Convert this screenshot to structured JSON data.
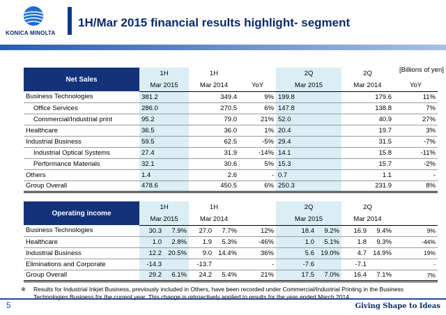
{
  "header": {
    "logo_text": "KONICA MINOLTA",
    "title": "1H/Mar 2015 financial results highlight- segment"
  },
  "units": "[Billions of yen]",
  "net_sales": {
    "section_label": "Net Sales",
    "col_periods": [
      "1H",
      "1H",
      "",
      "2Q",
      "2Q",
      ""
    ],
    "col_years": [
      "Mar 2015",
      "Mar 2014",
      "YoY",
      "Mar 2015",
      "Mar 2014",
      "YoY"
    ],
    "rows": [
      {
        "label": "Business Technologies",
        "indent": false,
        "v": [
          "381.2",
          "349.4",
          "9%",
          "199.8",
          "179.6",
          "11%"
        ]
      },
      {
        "label": "Office Services",
        "indent": true,
        "v": [
          "286.0",
          "270.5",
          "6%",
          "147.8",
          "138.8",
          "7%"
        ]
      },
      {
        "label": "Commercial/Industrial print",
        "indent": true,
        "v": [
          "95.2",
          "79.0",
          "21%",
          "52.0",
          "40.9",
          "27%"
        ]
      },
      {
        "label": "Healthcare",
        "indent": false,
        "v": [
          "36.5",
          "36.0",
          "1%",
          "20.4",
          "19.7",
          "3%"
        ]
      },
      {
        "label": "Industrial Business",
        "indent": false,
        "v": [
          "59.5",
          "62.5",
          "-5%",
          "29.4",
          "31.5",
          "-7%"
        ]
      },
      {
        "label": "Industrial Optical Systems",
        "indent": true,
        "v": [
          "27.4",
          "31.9",
          "-14%",
          "14.1",
          "15.8",
          "-11%"
        ]
      },
      {
        "label": "Performance Materials",
        "indent": true,
        "v": [
          "32.1",
          "30.6",
          "5%",
          "15.3",
          "15.7",
          "-2%"
        ]
      },
      {
        "label": "Others",
        "indent": false,
        "v": [
          "1.4",
          "2.6",
          "-",
          "0.7",
          "1.1",
          "-"
        ]
      },
      {
        "label": "Group Overall",
        "indent": false,
        "v": [
          "478.6",
          "450.5",
          "6%",
          "250.3",
          "231.9",
          "8%"
        ]
      }
    ]
  },
  "operating_income": {
    "section_label": "Operating income",
    "col_periods": [
      "1H",
      "1H",
      "",
      "2Q",
      "2Q",
      ""
    ],
    "col_years": [
      "Mar 2015",
      "Mar 2014",
      "",
      "Mar 2015",
      "Mar 2014",
      ""
    ],
    "rows": [
      {
        "label": "Business Technologies",
        "v": [
          [
            "30.3",
            "7.9%"
          ],
          [
            "27.0",
            "7.7%"
          ],
          "12%",
          [
            "18.4",
            "9.2%"
          ],
          [
            "16.9",
            "9.4%"
          ],
          "9%"
        ]
      },
      {
        "label": "Healthcare",
        "v": [
          [
            "1.0",
            "2.8%"
          ],
          [
            "1.9",
            "5.3%"
          ],
          "-46%",
          [
            "1.0",
            "5.1%"
          ],
          [
            "1.8",
            "9.3%"
          ],
          "-44%"
        ]
      },
      {
        "label": "Industrial Business",
        "v": [
          [
            "12.2",
            "20.5%"
          ],
          [
            "9.0",
            "14.4%"
          ],
          "36%",
          [
            "5.6",
            "19.0%"
          ],
          [
            "4.7",
            "14.9%"
          ],
          "19%"
        ]
      },
      {
        "label": "Eliminations and Corporate",
        "v": [
          [
            "-14.3",
            ""
          ],
          [
            "-13.7",
            ""
          ],
          "-",
          [
            "-7.6",
            ""
          ],
          [
            "-7.1",
            ""
          ],
          "-"
        ]
      },
      {
        "label": "Group Overall",
        "v": [
          [
            "29.2",
            "6.1%"
          ],
          [
            "24.2",
            "5.4%"
          ],
          "21%",
          [
            "17.5",
            "7.0%"
          ],
          [
            "16.4",
            "7.1%"
          ],
          "7%"
        ]
      }
    ]
  },
  "note": {
    "mark": "※",
    "text": "Results for Industrial Inkjet Business, previously included in Others, have been recorded under Commercial/Industrial Printing in the Business Technologies Business for the current year. This change is retroactively applied to results for the year ended March 2014."
  },
  "footer": {
    "page_number": "5",
    "tagline": "Giving Shape to Ideas"
  },
  "colors": {
    "brand_navy": "#14327a",
    "highlight": "#dbeef5"
  }
}
